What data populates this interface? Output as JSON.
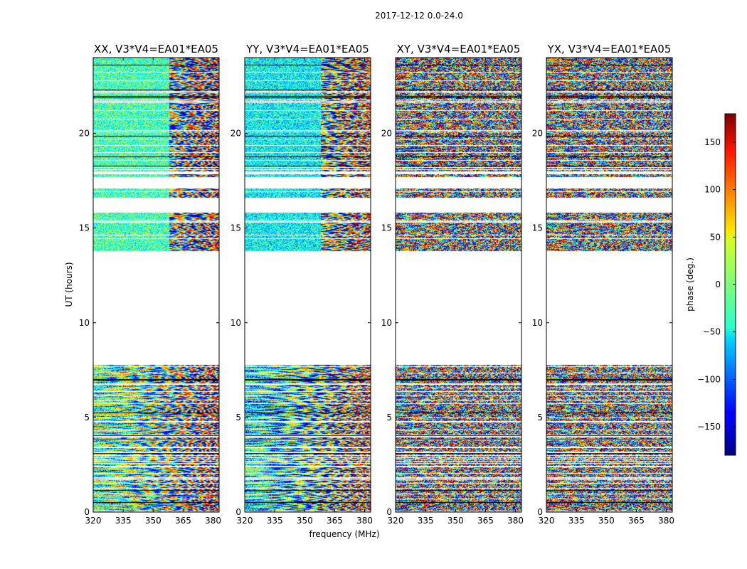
{
  "chart_data": {
    "type": "heatmap",
    "suptitle": "2017-12-12 0.0-24.0",
    "panels": [
      {
        "title": "XX, V3*V4=EA01*EA05",
        "mode": "parallel",
        "bias": -20
      },
      {
        "title": "YY, V3*V4=EA01*EA05",
        "mode": "parallel",
        "bias": -45
      },
      {
        "title": "XY, V3*V4=EA01*EA05",
        "mode": "cross",
        "bias": 0
      },
      {
        "title": "YX, V3*V4=EA01*EA05",
        "mode": "cross",
        "bias": 0
      }
    ],
    "xlabel": "frequency (MHz)",
    "ylabel": "UT (hours)",
    "xlim": [
      320,
      383
    ],
    "ylim": [
      0,
      24
    ],
    "xticks": [
      "320",
      "335",
      "350",
      "365",
      "380"
    ],
    "yticks": [
      "0",
      "5",
      "10",
      "15",
      "20"
    ],
    "colorbar": {
      "label": "phase (deg.)",
      "range": [
        -180,
        180
      ],
      "ticks": [
        "150",
        "100",
        "50",
        "0",
        "−50",
        "−100",
        "−150"
      ],
      "colormap": "jet"
    },
    "data_gaps_hours": [
      [
        7.8,
        13.8
      ],
      [
        15.8,
        16.6
      ],
      [
        17.1,
        17.7
      ]
    ],
    "structure_note": "phase fringes increasing with frequency, noisier in XY/YX cross-hands"
  }
}
